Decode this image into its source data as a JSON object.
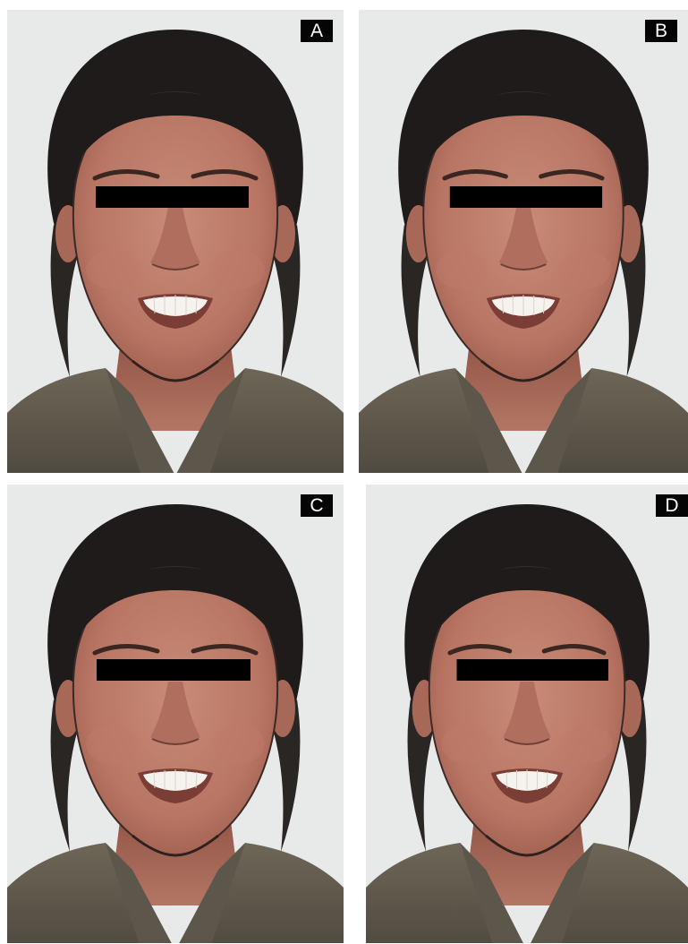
{
  "figure": {
    "panels": [
      {
        "id": "panel-a",
        "label": "A"
      },
      {
        "id": "panel-b",
        "label": "B"
      },
      {
        "id": "panel-c",
        "label": "C"
      },
      {
        "id": "panel-d",
        "label": "D"
      }
    ]
  }
}
